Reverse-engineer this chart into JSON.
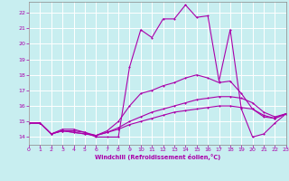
{
  "xlabel": "Windchill (Refroidissement éolien,°C)",
  "bg_color": "#c8eef0",
  "grid_color": "#ffffff",
  "line_color": "#aa00aa",
  "spine_color": "#888888",
  "xmin": 0,
  "xmax": 23,
  "ymin": 13.5,
  "ymax": 22.7,
  "yticks": [
    14,
    15,
    16,
    17,
    18,
    19,
    20,
    21,
    22
  ],
  "xticks": [
    0,
    1,
    2,
    3,
    4,
    5,
    6,
    7,
    8,
    9,
    10,
    11,
    12,
    13,
    14,
    15,
    16,
    17,
    18,
    19,
    20,
    21,
    22,
    23
  ],
  "line1_x": [
    0,
    1,
    2,
    3,
    4,
    5,
    6,
    7,
    8,
    9,
    10,
    11,
    12,
    13,
    14,
    15,
    16,
    17,
    18,
    19,
    20,
    21,
    22,
    23
  ],
  "line1_y": [
    14.9,
    14.9,
    14.2,
    14.5,
    14.5,
    14.3,
    14.0,
    14.0,
    14.0,
    18.5,
    20.9,
    20.4,
    21.6,
    21.6,
    22.5,
    21.7,
    21.8,
    17.6,
    20.9,
    15.8,
    14.0,
    14.2,
    14.9,
    15.5
  ],
  "line2_x": [
    0,
    1,
    2,
    3,
    4,
    5,
    6,
    7,
    8,
    9,
    10,
    11,
    12,
    13,
    14,
    15,
    16,
    17,
    18,
    19,
    20,
    21,
    22,
    23
  ],
  "line2_y": [
    14.9,
    14.9,
    14.2,
    14.4,
    14.4,
    14.3,
    14.1,
    14.4,
    15.0,
    16.0,
    16.8,
    17.0,
    17.3,
    17.5,
    17.8,
    18.0,
    17.8,
    17.5,
    17.6,
    16.8,
    15.8,
    15.3,
    15.2,
    15.5
  ],
  "line3_x": [
    0,
    1,
    2,
    3,
    4,
    5,
    6,
    7,
    8,
    9,
    10,
    11,
    12,
    13,
    14,
    15,
    16,
    17,
    18,
    19,
    20,
    21,
    22,
    23
  ],
  "line3_y": [
    14.9,
    14.9,
    14.2,
    14.4,
    14.3,
    14.2,
    14.1,
    14.3,
    14.6,
    15.0,
    15.3,
    15.6,
    15.8,
    16.0,
    16.2,
    16.4,
    16.5,
    16.6,
    16.6,
    16.5,
    16.2,
    15.6,
    15.3,
    15.5
  ],
  "line4_x": [
    0,
    1,
    2,
    3,
    4,
    5,
    6,
    7,
    8,
    9,
    10,
    11,
    12,
    13,
    14,
    15,
    16,
    17,
    18,
    19,
    20,
    21,
    22,
    23
  ],
  "line4_y": [
    14.9,
    14.9,
    14.2,
    14.4,
    14.3,
    14.2,
    14.1,
    14.3,
    14.5,
    14.8,
    15.0,
    15.2,
    15.4,
    15.6,
    15.7,
    15.8,
    15.9,
    16.0,
    16.0,
    15.9,
    15.8,
    15.4,
    15.2,
    15.5
  ]
}
